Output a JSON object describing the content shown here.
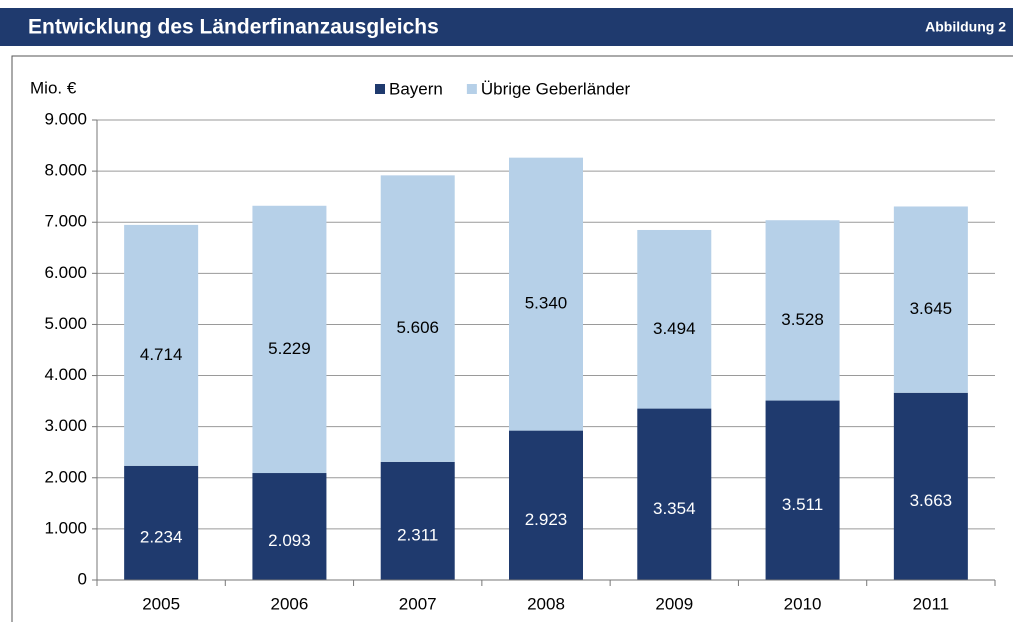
{
  "chart_data": {
    "type": "stacked_bar",
    "title": "Entwicklung des Länderfinanzausgleichs",
    "figure_label": "Abbildung 2",
    "y_axis_label": "Mio. €",
    "categories": [
      "2005",
      "2006",
      "2007",
      "2008",
      "2009",
      "2010",
      "2011"
    ],
    "series": [
      {
        "name": "Bayern",
        "color": "#1f3a6e",
        "values": [
          2234,
          2093,
          2311,
          2923,
          3354,
          3511,
          3663
        ],
        "value_labels": [
          "2.234",
          "2.093",
          "2.311",
          "2.923",
          "3.354",
          "3.511",
          "3.663"
        ]
      },
      {
        "name": "Übrige Geberländer",
        "color": "#b6d0e8",
        "values": [
          4714,
          5229,
          5606,
          5340,
          3494,
          3528,
          3645
        ],
        "value_labels": [
          "4.714",
          "5.229",
          "5.606",
          "5.340",
          "3.494",
          "3.528",
          "3.645"
        ]
      }
    ],
    "ylim": [
      0,
      9000
    ],
    "yticks": [
      0,
      {
        "value": 1000,
        "label": "1.000"
      },
      {
        "value": 2000,
        "label": "2.000"
      },
      {
        "value": 3000,
        "label": "3.000"
      },
      {
        "value": 4000,
        "label": "4.000"
      },
      {
        "value": 5000,
        "label": "5.000"
      },
      {
        "value": 6000,
        "label": "6.000"
      },
      {
        "value": 7000,
        "label": "7.000"
      },
      {
        "value": 8000,
        "label": "8.000"
      },
      {
        "value": 9000,
        "label": "9.000"
      }
    ],
    "grid": true,
    "legend": "top"
  }
}
